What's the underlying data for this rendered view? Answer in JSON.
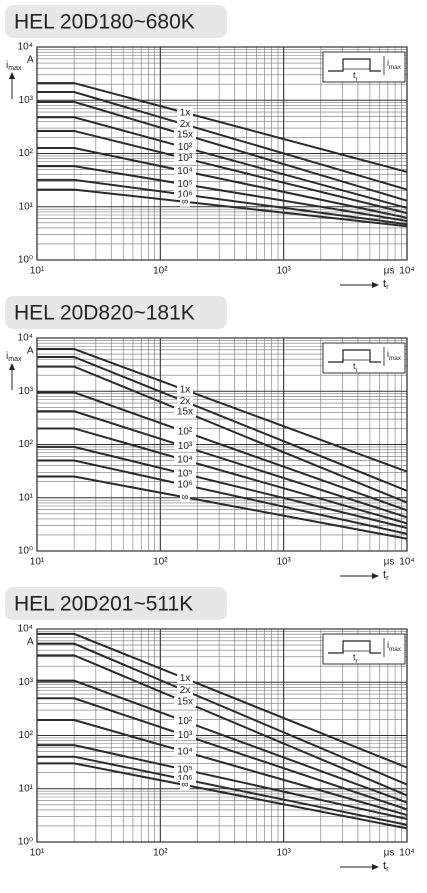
{
  "chart_data": [
    {
      "type": "line",
      "title": "HEL 20D180~680K",
      "log_x": true,
      "log_y": true,
      "grid": true,
      "color": "#2b2b2b",
      "xlim": [
        10,
        10000
      ],
      "xticks": [
        {
          "value": 10,
          "label": "10¹"
        },
        {
          "value": 100,
          "label": "10²"
        },
        {
          "value": 1000,
          "label": "10³"
        },
        {
          "value": 10000,
          "label": "10⁴"
        }
      ],
      "ylim": [
        1,
        10000
      ],
      "yticks": [
        {
          "value": 1,
          "label": "10⁰"
        },
        {
          "value": 10,
          "label": "10¹"
        },
        {
          "value": 100,
          "label": "10²"
        },
        {
          "value": 1000,
          "label": "10³"
        },
        {
          "value": 10000,
          "label": "10⁴"
        }
      ],
      "x_unit": "μs",
      "x_label": "t",
      "x_label_sub": "r",
      "y_label": "i",
      "y_label_sub": "max",
      "y_unit": "A",
      "inset_x_label": "t",
      "inset_x_sub": "r",
      "inset_y_label": "i",
      "inset_y_sub": "max",
      "x": [
        10,
        20,
        10000
      ],
      "series": [
        {
          "name": "1x",
          "values": [
            2100,
            2100,
            45
          ]
        },
        {
          "name": "2x",
          "values": [
            1430,
            1430,
            21
          ]
        },
        {
          "name": "15x",
          "values": [
            930,
            930,
            13
          ]
        },
        {
          "name": "10²",
          "values": [
            480,
            480,
            9.5
          ]
        },
        {
          "name": "10³",
          "values": [
            265,
            265,
            7.6
          ]
        },
        {
          "name": "10⁴",
          "values": [
            127,
            127,
            6.2
          ]
        },
        {
          "name": "10⁵",
          "values": [
            58,
            58,
            5.4
          ]
        },
        {
          "name": "10⁶",
          "values": [
            32,
            32,
            4.7
          ]
        },
        {
          "name": "∞",
          "values": [
            21,
            21,
            4.3
          ]
        }
      ]
    },
    {
      "type": "line",
      "title": "HEL 20D820~181K",
      "log_x": true,
      "log_y": true,
      "grid": true,
      "color": "#2b2b2b",
      "xlim": [
        10,
        10000
      ],
      "xticks": [
        {
          "value": 10,
          "label": "10¹"
        },
        {
          "value": 100,
          "label": "10²"
        },
        {
          "value": 1000,
          "label": "10³"
        },
        {
          "value": 10000,
          "label": "10⁴"
        }
      ],
      "ylim": [
        1,
        10000
      ],
      "yticks": [
        {
          "value": 1,
          "label": "10⁰"
        },
        {
          "value": 10,
          "label": "10¹"
        },
        {
          "value": 100,
          "label": "10²"
        },
        {
          "value": 1000,
          "label": "10³"
        },
        {
          "value": 10000,
          "label": "10⁴"
        }
      ],
      "x_unit": "μs",
      "x_label": "t",
      "x_label_sub": "r",
      "y_label": "i",
      "y_label_sub": "max",
      "y_unit": "A",
      "inset_x_label": "t",
      "inset_x_sub": "r",
      "inset_y_label": "i",
      "inset_y_sub": "max",
      "x": [
        10,
        20,
        10000
      ],
      "series": [
        {
          "name": "1x",
          "values": [
            6200,
            6200,
            31
          ]
        },
        {
          "name": "2x",
          "values": [
            4400,
            4400,
            13.5
          ]
        },
        {
          "name": "15x",
          "values": [
            2900,
            2900,
            8.1
          ]
        },
        {
          "name": "10²",
          "values": [
            950,
            950,
            5.8
          ]
        },
        {
          "name": "10³",
          "values": [
            420,
            420,
            4.3
          ]
        },
        {
          "name": "10⁴",
          "values": [
            200,
            200,
            3.3
          ]
        },
        {
          "name": "10⁵",
          "values": [
            90,
            90,
            2.7
          ]
        },
        {
          "name": "10⁶",
          "values": [
            50,
            50,
            2.1
          ]
        },
        {
          "name": "∞",
          "values": [
            25,
            25,
            1.7
          ]
        }
      ]
    },
    {
      "type": "line",
      "title": "HEL 20D201~511K",
      "log_x": true,
      "log_y": true,
      "grid": true,
      "color": "#2b2b2b",
      "xlim": [
        10,
        10000
      ],
      "xticks": [
        {
          "value": 10,
          "label": "10¹"
        },
        {
          "value": 100,
          "label": "10²"
        },
        {
          "value": 1000,
          "label": "10³"
        },
        {
          "value": 10000,
          "label": "10⁴"
        }
      ],
      "ylim": [
        1,
        10000
      ],
      "yticks": [
        {
          "value": 1,
          "label": "10⁰"
        },
        {
          "value": 10,
          "label": "10¹"
        },
        {
          "value": 100,
          "label": "10²"
        },
        {
          "value": 1000,
          "label": "10³"
        },
        {
          "value": 10000,
          "label": "10⁴"
        }
      ],
      "x_unit": "μs",
      "x_label": "t",
      "x_label_sub": "r",
      "y_unit": "A",
      "inset_x_label": "t",
      "inset_x_sub": "r",
      "inset_y_label": "i",
      "inset_y_sub": "max",
      "x": [
        10,
        20,
        10000
      ],
      "series": [
        {
          "name": "1x",
          "values": [
            8100,
            8100,
            25
          ]
        },
        {
          "name": "2x",
          "values": [
            5300,
            5300,
            12
          ]
        },
        {
          "name": "15x",
          "values": [
            3200,
            3200,
            7.5
          ]
        },
        {
          "name": "10²",
          "values": [
            1070,
            1070,
            5.5
          ]
        },
        {
          "name": "10³",
          "values": [
            500,
            500,
            4.1
          ]
        },
        {
          "name": "10⁴",
          "values": [
            195,
            195,
            3.2
          ]
        },
        {
          "name": "10⁵",
          "values": [
            66,
            66,
            2.7
          ]
        },
        {
          "name": "10⁶",
          "values": [
            40,
            40,
            2.1
          ]
        },
        {
          "name": "∞",
          "values": [
            30,
            30,
            1.8
          ]
        }
      ]
    }
  ]
}
